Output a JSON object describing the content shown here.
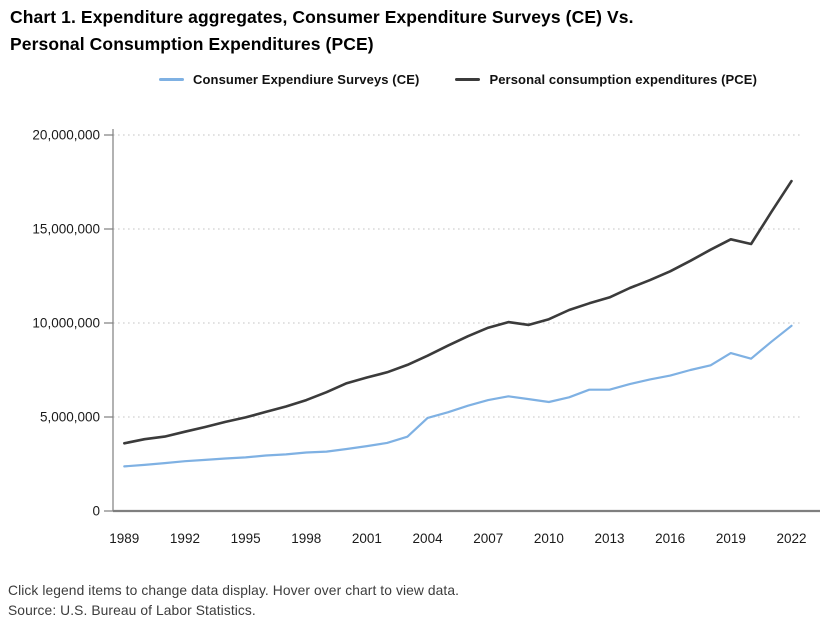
{
  "title": {
    "line1": "Chart 1. Expenditure aggregates, Consumer Expenditure Surveys (CE) Vs.",
    "line2": "Personal Consumption Expenditures (PCE)"
  },
  "legend": {
    "items": [
      {
        "label": "Consumer Expendiure Surveys (CE)",
        "color": "#7FB1E3"
      },
      {
        "label": "Personal consumption expenditures (PCE)",
        "color": "#3B3B3B"
      }
    ]
  },
  "footer": {
    "line1": "Click legend items to change data display. Hover over chart to view data.",
    "line2": "Source: U.S. Bureau of Labor Statistics."
  },
  "chart_data": {
    "type": "line",
    "title": "Chart 1. Expenditure aggregates, Consumer Expenditure Surveys (CE) Vs. Personal Consumption Expenditures (PCE)",
    "xlabel": "",
    "ylabel": "",
    "x": [
      1989,
      1990,
      1991,
      1992,
      1993,
      1994,
      1995,
      1996,
      1997,
      1998,
      1999,
      2000,
      2001,
      2002,
      2003,
      2004,
      2005,
      2006,
      2007,
      2008,
      2009,
      2010,
      2011,
      2012,
      2013,
      2014,
      2015,
      2016,
      2017,
      2018,
      2019,
      2020,
      2021,
      2022
    ],
    "series": [
      {
        "name": "Consumer Expendiure Surveys (CE)",
        "color": "#7FB1E3",
        "values": [
          2370000,
          2450000,
          2550000,
          2650000,
          2720000,
          2790000,
          2850000,
          2950000,
          3010000,
          3110000,
          3160000,
          3300000,
          3450000,
          3620000,
          3950000,
          4950000,
          5250000,
          5600000,
          5900000,
          6100000,
          5950000,
          5800000,
          6050000,
          6450000,
          6450000,
          6750000,
          7000000,
          7200000,
          7500000,
          7750000,
          8400000,
          8100000,
          9000000,
          9850000
        ]
      },
      {
        "name": "Personal consumption expenditures (PCE)",
        "color": "#3B3B3B",
        "values": [
          3600000,
          3820000,
          3960000,
          4220000,
          4470000,
          4740000,
          4980000,
          5270000,
          5560000,
          5900000,
          6320000,
          6800000,
          7100000,
          7380000,
          7770000,
          8260000,
          8790000,
          9300000,
          9750000,
          10050000,
          9900000,
          10200000,
          10690000,
          11050000,
          11360000,
          11860000,
          12280000,
          12750000,
          13310000,
          13900000,
          14450000,
          14200000,
          15900000,
          17550000
        ]
      }
    ],
    "ylim": [
      0,
      20000000
    ],
    "yticks": [
      0,
      5000000,
      10000000,
      15000000,
      20000000
    ],
    "ytick_labels": [
      "0",
      "5,000,000",
      "10,000,000",
      "15,000,000",
      "20,000,000"
    ],
    "xticks": [
      1989,
      1992,
      1995,
      1998,
      2001,
      2004,
      2007,
      2010,
      2013,
      2016,
      2019,
      2022
    ],
    "grid": "horizontal-dotted",
    "legend_position": "top-center",
    "style": {
      "grid_color": "#C4C4C4",
      "axis_color": "#7F7F7F",
      "tick_label_color": "#1A1A1A"
    }
  }
}
